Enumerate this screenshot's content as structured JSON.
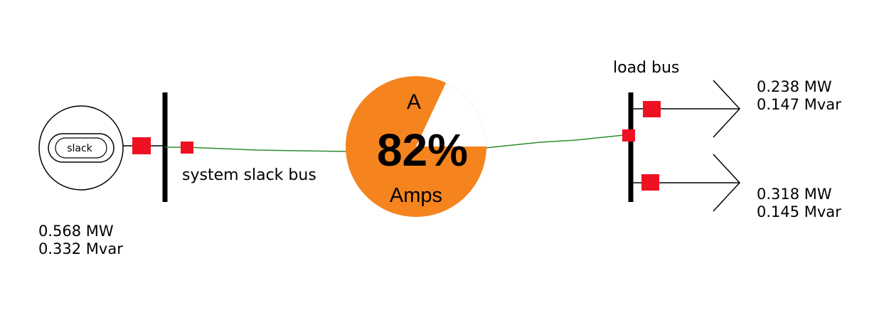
{
  "generator": {
    "symbol_label": "slack",
    "mw": "0.568 MW",
    "mvar": "0.332 Mvar"
  },
  "buses": {
    "slack_bus_label": "system slack bus",
    "load_bus_label": "load bus"
  },
  "line": {
    "prefix": "A",
    "loading_text": "82%",
    "unit": "Amps",
    "loading_percent": 82,
    "gauge_color": "#f5841f",
    "line_color": "#2e8b2e"
  },
  "loads": [
    {
      "mw": "0.238 MW",
      "mvar": "0.147 Mvar"
    },
    {
      "mw": "0.318 MW",
      "mvar": "0.145 Mvar"
    }
  ],
  "colors": {
    "breaker": "#ee1122",
    "bus": "#000000"
  }
}
